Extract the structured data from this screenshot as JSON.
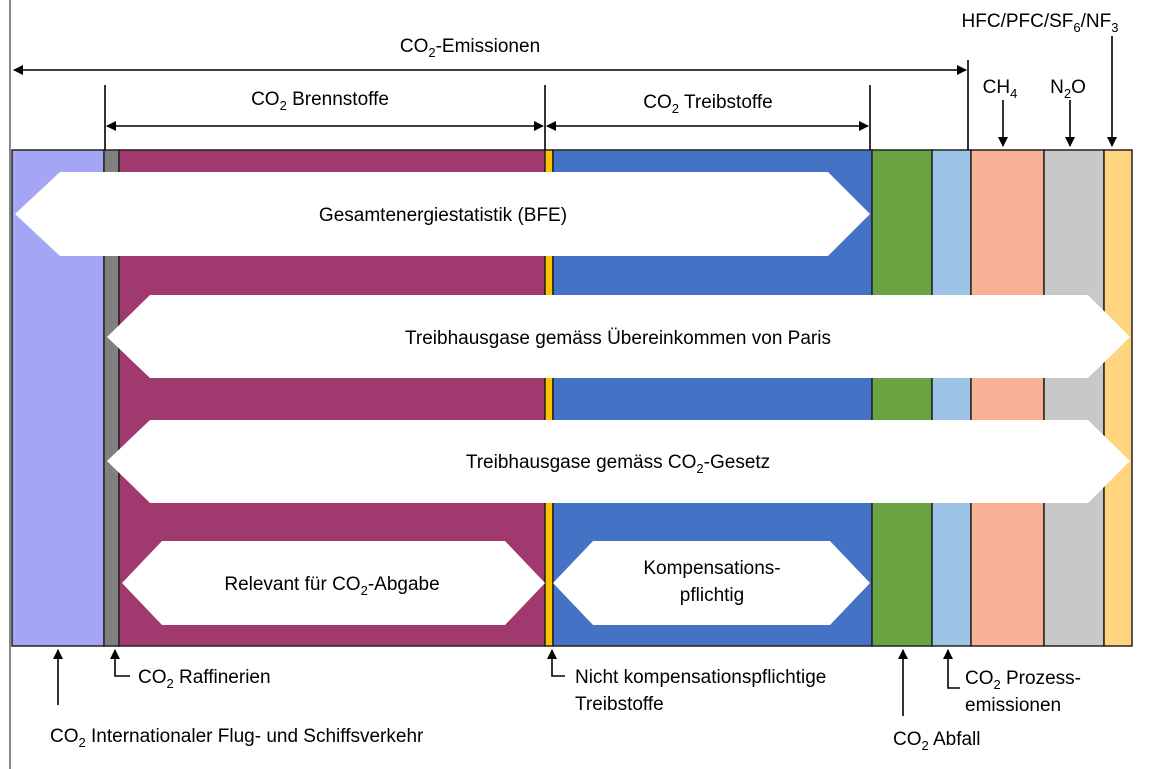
{
  "top": {
    "co2_emissionen": [
      [
        "CO",
        "2",
        "-Emissionen"
      ]
    ],
    "co2_brennstoffe": [
      [
        "CO",
        "2",
        " Brennstoffe"
      ]
    ],
    "co2_treibstoffe": [
      [
        "CO",
        "2",
        " Treibstoffe"
      ]
    ],
    "hfc": [
      [
        "HFC/PFC/SF",
        "6",
        "/NF",
        "3"
      ]
    ],
    "ch4": [
      [
        "CH",
        "4"
      ]
    ],
    "n2o": [
      [
        "N",
        "2",
        "O"
      ]
    ]
  },
  "bands": {
    "gesamtenergie": [
      [
        "Gesamtenergiestatistik (BFE)"
      ]
    ],
    "paris": [
      [
        "Treibhausgase gemäss Übereinkommen von Paris"
      ]
    ],
    "co2_gesetz": [
      [
        "Treibhausgase gemäss CO",
        "2",
        "-Gesetz"
      ]
    ],
    "co2_abgabe": [
      [
        "Relevant für CO",
        "2",
        "-Abgabe"
      ]
    ],
    "kompensation": [
      [
        "Kompensations-"
      ],
      [
        "pflichtig"
      ]
    ]
  },
  "bottom": {
    "raffinerien": [
      [
        "CO",
        "2",
        " Raffinerien"
      ]
    ],
    "international": [
      [
        "CO",
        "2",
        " Internationaler Flug- und Schiffsverkehr"
      ]
    ],
    "nicht_kompensation": [
      [
        "Nicht kompensationspflichtige"
      ],
      [
        "Treibstoffe"
      ]
    ],
    "abfall": [
      [
        "CO",
        "2",
        " Abfall"
      ]
    ],
    "prozess": [
      [
        "CO",
        "2",
        " Prozess-"
      ],
      [
        "emissionen"
      ]
    ]
  }
}
